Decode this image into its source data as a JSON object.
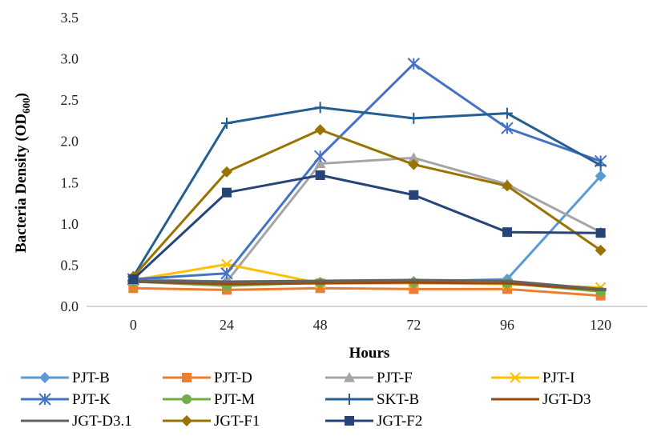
{
  "chart_data": {
    "type": "line",
    "title": "",
    "xlabel": "Hours",
    "ylabel": "Bacteria Density (OD",
    "ylabel_sub": "600",
    "ylabel_close": ")",
    "x": [
      0,
      24,
      48,
      72,
      96,
      120
    ],
    "x_tick_labels": [
      "0",
      "24",
      "48",
      "72",
      "96",
      "120"
    ],
    "ylim": [
      0,
      3.5
    ],
    "y_tick_labels": [
      "0.0",
      "0.5",
      "1.0",
      "1.5",
      "2.0",
      "2.5",
      "3.0",
      "3.5"
    ],
    "grid": false,
    "legend_position": "bottom",
    "series": [
      {
        "name": "PJT-B",
        "color": "#5B9BD5",
        "marker": "diamond",
        "values": [
          0.33,
          0.3,
          0.29,
          0.3,
          0.33,
          1.58
        ]
      },
      {
        "name": "PJT-D",
        "color": "#ED7D31",
        "marker": "square",
        "values": [
          0.22,
          0.2,
          0.22,
          0.21,
          0.21,
          0.13
        ]
      },
      {
        "name": "PJT-F",
        "color": "#A5A5A5",
        "marker": "triangle",
        "values": [
          0.31,
          0.3,
          1.73,
          1.8,
          1.48,
          0.9
        ]
      },
      {
        "name": "PJT-I",
        "color": "#FFC000",
        "marker": "x",
        "values": [
          0.32,
          0.51,
          0.28,
          0.28,
          0.27,
          0.23
        ]
      },
      {
        "name": "PJT-K",
        "color": "#4472C4",
        "marker": "star",
        "values": [
          0.33,
          0.4,
          1.82,
          2.94,
          2.16,
          1.76
        ]
      },
      {
        "name": "PJT-M",
        "color": "#70AD47",
        "marker": "circle",
        "values": [
          0.3,
          0.25,
          0.29,
          0.29,
          0.28,
          0.18
        ]
      },
      {
        "name": "SKT-B",
        "color": "#255E91",
        "marker": "plus",
        "values": [
          0.36,
          2.22,
          2.41,
          2.28,
          2.34,
          1.71
        ]
      },
      {
        "name": "JGT-D3",
        "color": "#9E480E",
        "marker": "dash",
        "values": [
          0.3,
          0.27,
          0.28,
          0.29,
          0.28,
          0.2
        ]
      },
      {
        "name": "JGT-D3.1",
        "color": "#636363",
        "marker": "dash",
        "values": [
          0.31,
          0.3,
          0.31,
          0.32,
          0.31,
          0.21
        ]
      },
      {
        "name": "JGT-F1",
        "color": "#997300",
        "marker": "diamond",
        "values": [
          0.36,
          1.63,
          2.14,
          1.72,
          1.46,
          0.68
        ]
      },
      {
        "name": "JGT-F2",
        "color": "#264478",
        "marker": "square",
        "values": [
          0.33,
          1.38,
          1.59,
          1.35,
          0.9,
          0.89
        ]
      }
    ]
  }
}
